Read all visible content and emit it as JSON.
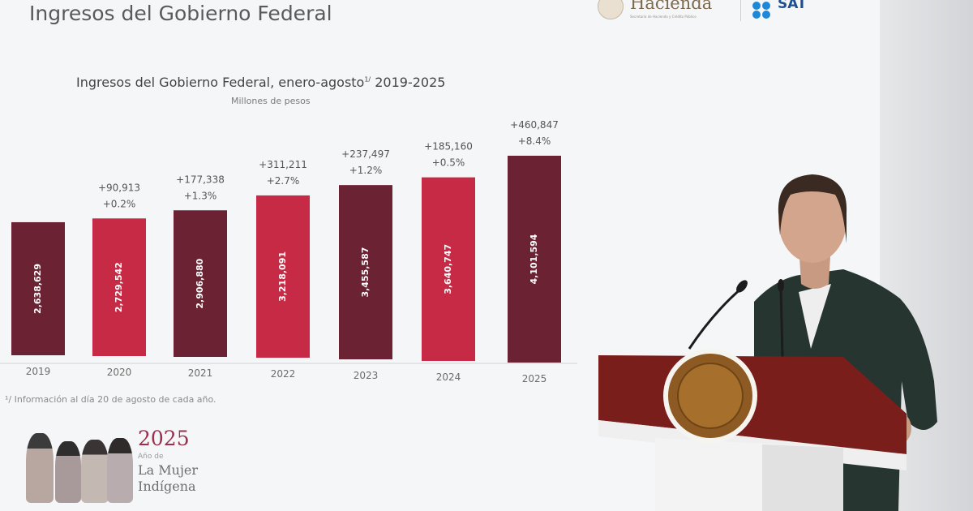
{
  "slide": {
    "title": "Ingresos del Gobierno Federal",
    "chart_title": "Ingresos del Gobierno Federal, enero-agosto",
    "chart_title_sup": "1/",
    "chart_title_years": "2019-2025",
    "chart_subtitle": "Millones de pesos",
    "footnote": "¹/ Información al día 20 de agosto de cada año.",
    "logos": {
      "hacienda": "Hacienda",
      "hacienda_sub": "Secretaría de Hacienda y Crédito Público",
      "sat": "SAT"
    },
    "banner": {
      "year": "2025",
      "line1": "Año de",
      "line2": "La Mujer",
      "line3": "Indígena"
    }
  },
  "chart_data": {
    "type": "bar",
    "title": "Ingresos del Gobierno Federal, enero-agosto 2019-2025",
    "subtitle": "Millones de pesos",
    "categories": [
      "2019",
      "2020",
      "2021",
      "2022",
      "2023",
      "2024",
      "2025"
    ],
    "values": [
      2638629,
      2729542,
      2906880,
      3218091,
      3455587,
      3640747,
      4101594
    ],
    "value_labels": [
      "2,638,629",
      "2,729,542",
      "2,906,880",
      "3,218,091",
      "3,455,587",
      "3,640,747",
      "4,101,594"
    ],
    "change_abs": [
      "",
      "+90,913",
      "+177,338",
      "+311,211",
      "+237,497",
      "+185,160",
      "+460,847"
    ],
    "change_pct": [
      "",
      "+0.2%",
      "+1.3%",
      "+2.7%",
      "+1.2%",
      "+0.5%",
      "+8.4%"
    ],
    "colors": [
      "#6b2233",
      "#c62a45",
      "#6b2233",
      "#c62a45",
      "#6b2233",
      "#c62a45",
      "#6b2233"
    ],
    "grid": false,
    "legend": "none"
  }
}
